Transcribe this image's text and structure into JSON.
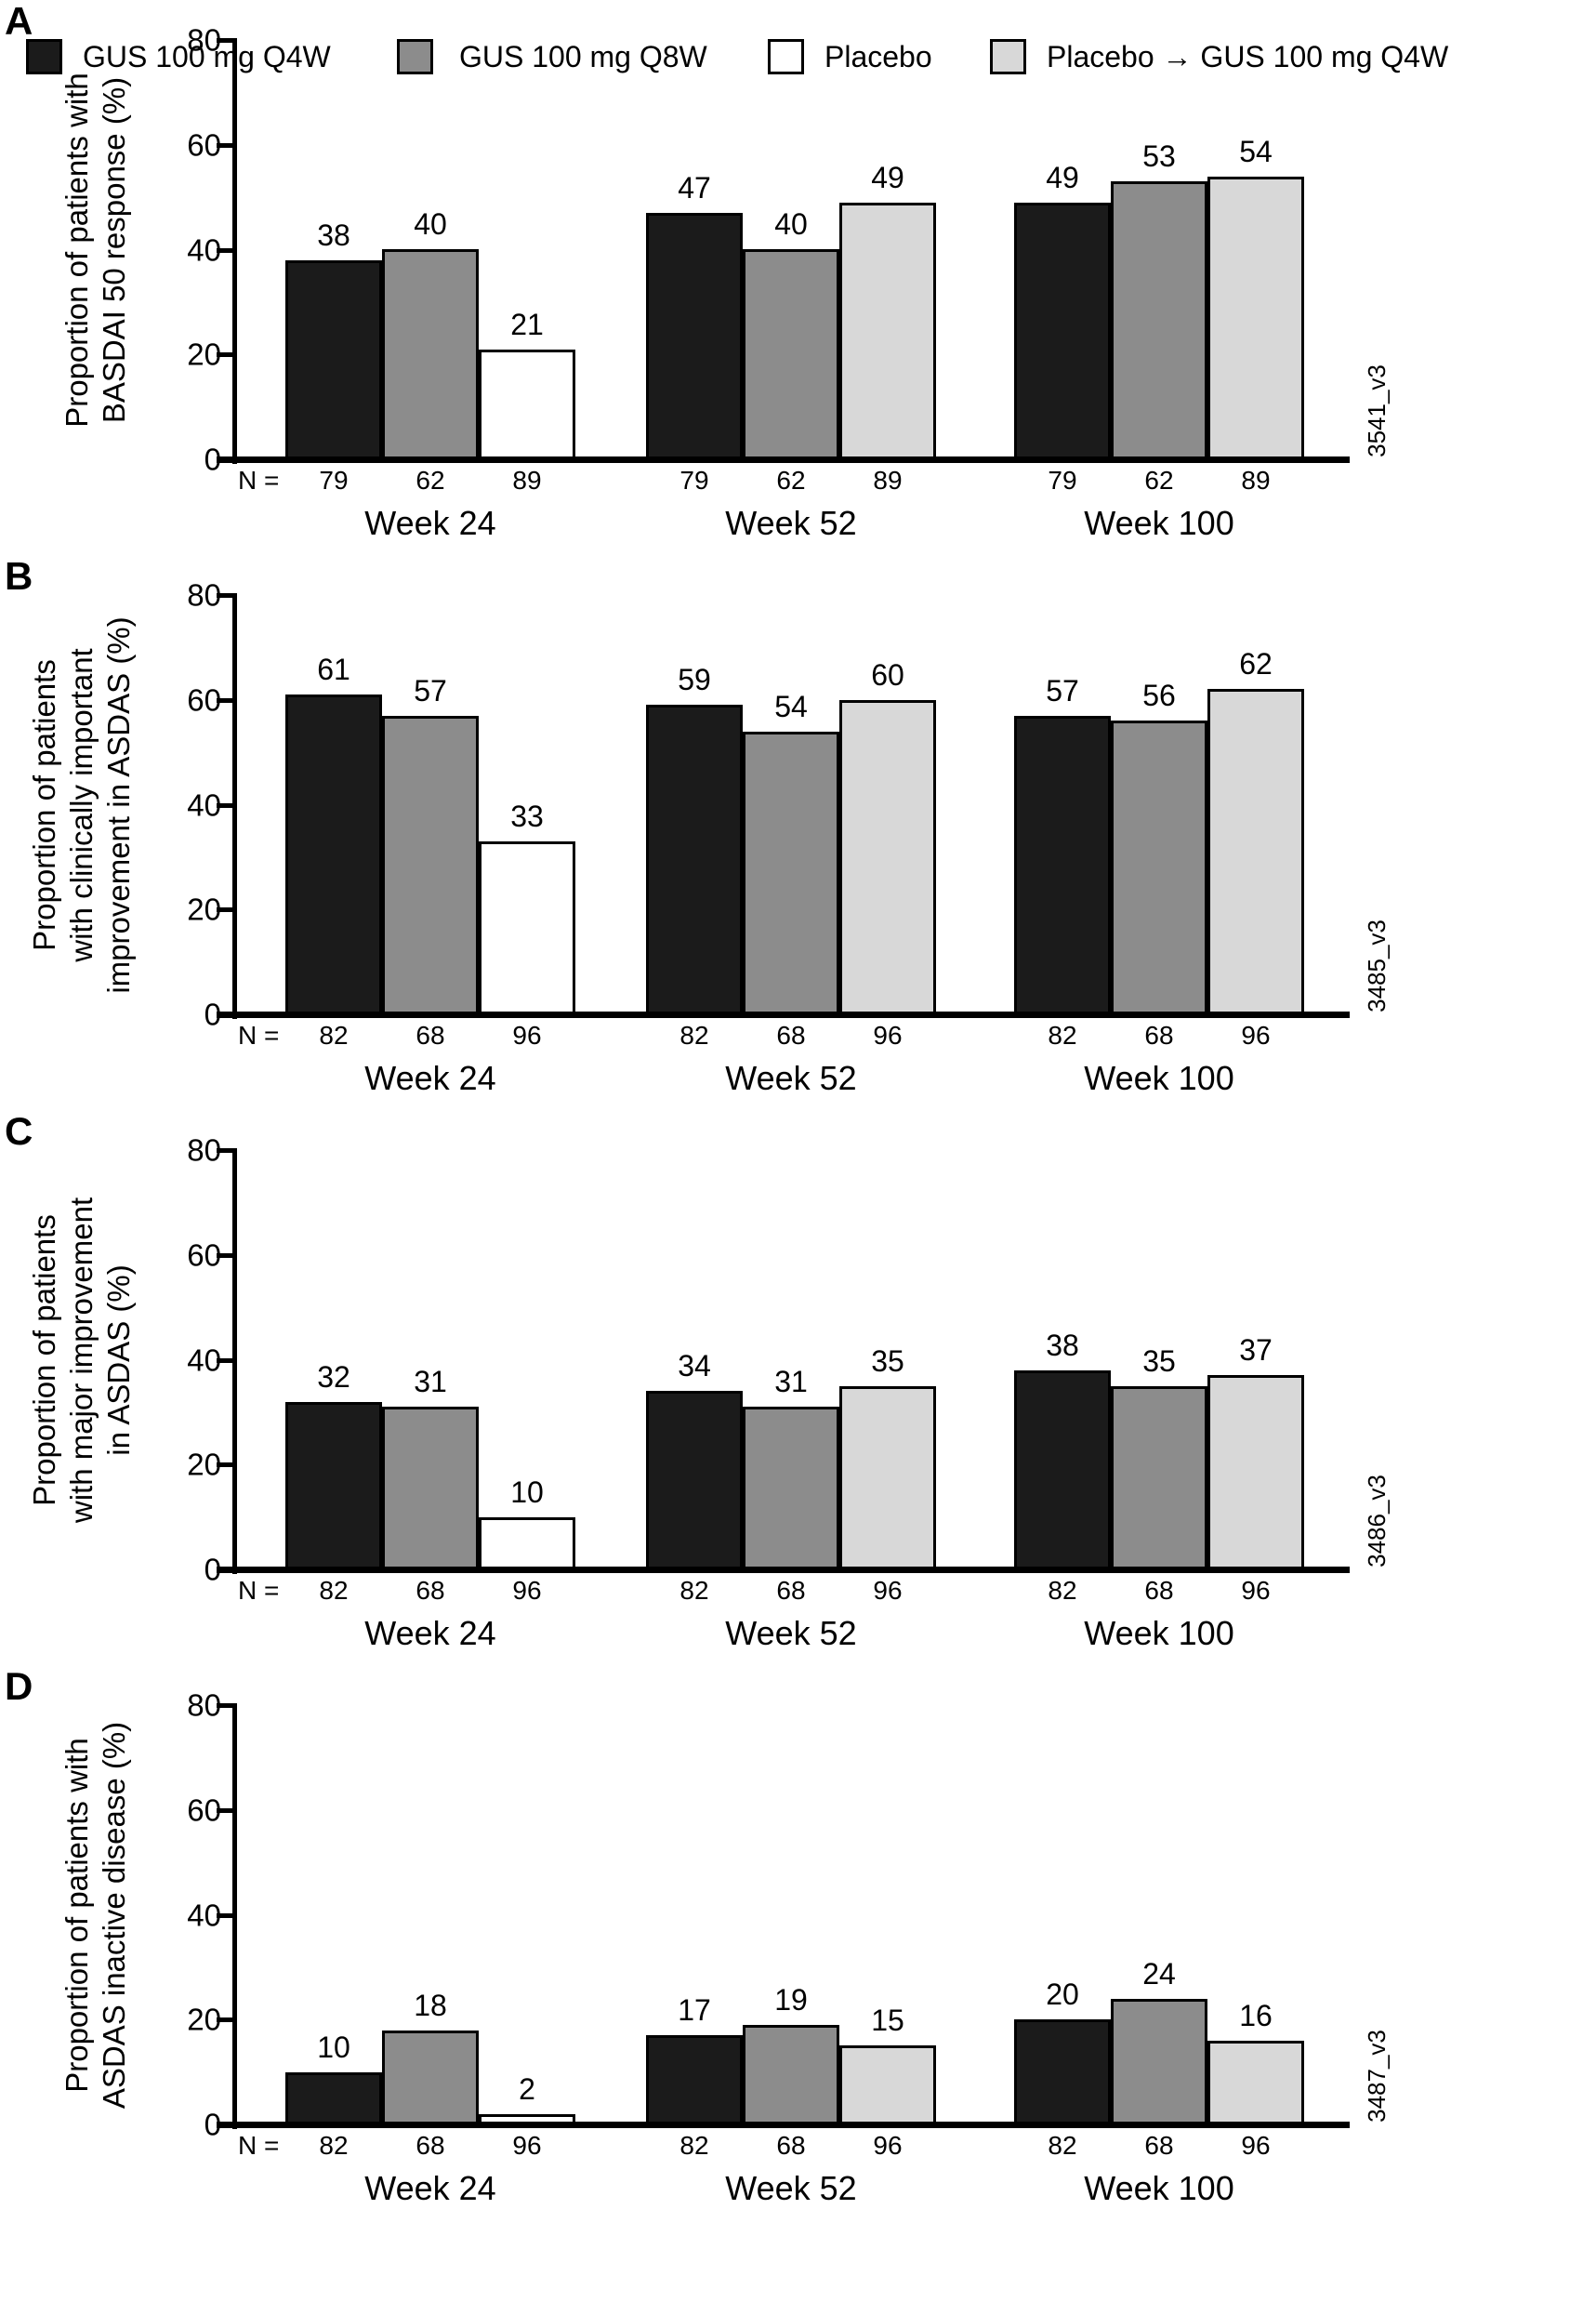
{
  "figure": {
    "colors": {
      "q4w": "#1b1b1b",
      "q8w": "#8c8c8c",
      "placebo": "#ffffff",
      "crossover": "#d8d8d8"
    },
    "legend": {
      "items": [
        {
          "label": "GUS 100 mg Q4W",
          "color_key": "q4w"
        },
        {
          "label": "GUS 100 mg Q8W",
          "color_key": "q8w"
        },
        {
          "label": "Placebo",
          "color_key": "placebo"
        },
        {
          "label": "Placebo → GUS 100 mg Q4W",
          "color_key": "crossover"
        }
      ]
    }
  },
  "chart_data": [
    {
      "type": "bar",
      "panel": "A",
      "ylabel": "Proportion of patients with\nBASDAI 50 response (%)",
      "ylim": [
        0,
        80
      ],
      "yticks": [
        0,
        20,
        40,
        60,
        80
      ],
      "categories": [
        "Week 24",
        "Week 52",
        "Week 100"
      ],
      "series": [
        {
          "name": "GUS 100 mg Q4W",
          "color_key": "q4w",
          "values": [
            38,
            47,
            49
          ]
        },
        {
          "name": "GUS 100 mg Q8W",
          "color_key": "q8w",
          "values": [
            40,
            40,
            53
          ]
        },
        {
          "name": "Placebo",
          "color_key": "placebo",
          "values": [
            21,
            null,
            null
          ]
        },
        {
          "name": "Placebo → GUS 100 mg Q4W",
          "color_key": "crossover",
          "values": [
            null,
            49,
            54
          ]
        }
      ],
      "n_label": "N =",
      "n_values": [
        [
          79,
          62,
          89
        ],
        [
          79,
          62,
          89
        ],
        [
          79,
          62,
          89
        ]
      ],
      "side_label": "3541_v3",
      "grid": false,
      "legend_position": "shared-bottom"
    },
    {
      "type": "bar",
      "panel": "B",
      "ylabel": "Proportion of patients\nwith clinically important\nimprovement in ASDAS (%)",
      "ylim": [
        0,
        80
      ],
      "yticks": [
        0,
        20,
        40,
        60,
        80
      ],
      "categories": [
        "Week 24",
        "Week 52",
        "Week 100"
      ],
      "series": [
        {
          "name": "GUS 100 mg Q4W",
          "color_key": "q4w",
          "values": [
            61,
            59,
            57
          ]
        },
        {
          "name": "GUS 100 mg Q8W",
          "color_key": "q8w",
          "values": [
            57,
            54,
            56
          ]
        },
        {
          "name": "Placebo",
          "color_key": "placebo",
          "values": [
            33,
            null,
            null
          ]
        },
        {
          "name": "Placebo → GUS 100 mg Q4W",
          "color_key": "crossover",
          "values": [
            null,
            60,
            62
          ]
        }
      ],
      "n_label": "N =",
      "n_values": [
        [
          82,
          68,
          96
        ],
        [
          82,
          68,
          96
        ],
        [
          82,
          68,
          96
        ]
      ],
      "side_label": "3485_v3",
      "grid": false,
      "legend_position": "shared-bottom"
    },
    {
      "type": "bar",
      "panel": "C",
      "ylabel": "Proportion of patients\nwith major improvement\nin ASDAS (%)",
      "ylim": [
        0,
        80
      ],
      "yticks": [
        0,
        20,
        40,
        60,
        80
      ],
      "categories": [
        "Week 24",
        "Week 52",
        "Week 100"
      ],
      "series": [
        {
          "name": "GUS 100 mg Q4W",
          "color_key": "q4w",
          "values": [
            32,
            34,
            38
          ]
        },
        {
          "name": "GUS 100 mg Q8W",
          "color_key": "q8w",
          "values": [
            31,
            31,
            35
          ]
        },
        {
          "name": "Placebo",
          "color_key": "placebo",
          "values": [
            10,
            null,
            null
          ]
        },
        {
          "name": "Placebo → GUS 100 mg Q4W",
          "color_key": "crossover",
          "values": [
            null,
            35,
            37
          ]
        }
      ],
      "n_label": "N =",
      "n_values": [
        [
          82,
          68,
          96
        ],
        [
          82,
          68,
          96
        ],
        [
          82,
          68,
          96
        ]
      ],
      "side_label": "3486_v3",
      "grid": false,
      "legend_position": "shared-bottom"
    },
    {
      "type": "bar",
      "panel": "D",
      "ylabel": "Proportion of patients with\nASDAS inactive disease (%)",
      "ylim": [
        0,
        80
      ],
      "yticks": [
        0,
        20,
        40,
        60,
        80
      ],
      "categories": [
        "Week 24",
        "Week 52",
        "Week 100"
      ],
      "series": [
        {
          "name": "GUS 100 mg Q4W",
          "color_key": "q4w",
          "values": [
            10,
            17,
            20
          ]
        },
        {
          "name": "GUS 100 mg Q8W",
          "color_key": "q8w",
          "values": [
            18,
            19,
            24
          ]
        },
        {
          "name": "Placebo",
          "color_key": "placebo",
          "values": [
            2,
            null,
            null
          ]
        },
        {
          "name": "Placebo → GUS 100 mg Q4W",
          "color_key": "crossover",
          "values": [
            null,
            15,
            16
          ]
        }
      ],
      "n_label": "N =",
      "n_values": [
        [
          82,
          68,
          96
        ],
        [
          82,
          68,
          96
        ],
        [
          82,
          68,
          96
        ]
      ],
      "side_label": "3487_v3",
      "grid": false,
      "legend_position": "shared-bottom"
    }
  ]
}
